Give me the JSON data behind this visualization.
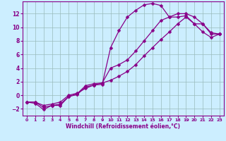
{
  "title": "",
  "xlabel": "Windchill (Refroidissement éolien,°C)",
  "ylabel": "",
  "bg_color": "#cceeff",
  "line_color": "#880088",
  "grid_color": "#99bbbb",
  "xlim": [
    -0.5,
    23.5
  ],
  "ylim": [
    -3.0,
    13.8
  ],
  "xticks": [
    0,
    1,
    2,
    3,
    4,
    5,
    6,
    7,
    8,
    9,
    10,
    11,
    12,
    13,
    14,
    15,
    16,
    17,
    18,
    19,
    20,
    21,
    22,
    23
  ],
  "yticks": [
    -2,
    0,
    2,
    4,
    6,
    8,
    10,
    12
  ],
  "line1_x": [
    0,
    1,
    2,
    3,
    4,
    5,
    6,
    7,
    8,
    9,
    10,
    11,
    12,
    13,
    14,
    15,
    16,
    17,
    18,
    19,
    20,
    21,
    22,
    23
  ],
  "line1_y": [
    -1.0,
    -1.2,
    -2.1,
    -1.5,
    -1.5,
    -0.2,
    0.1,
    1.2,
    1.5,
    1.6,
    7.0,
    9.5,
    11.5,
    12.5,
    13.3,
    13.5,
    13.2,
    11.5,
    11.5,
    11.7,
    10.5,
    10.5,
    9.0,
    9.0
  ],
  "line2_x": [
    0,
    1,
    2,
    3,
    4,
    5,
    6,
    7,
    8,
    9,
    10,
    11,
    12,
    13,
    14,
    15,
    16,
    17,
    18,
    19,
    20,
    21,
    22,
    23
  ],
  "line2_y": [
    -1.0,
    -1.0,
    -1.8,
    -1.5,
    -1.3,
    -0.2,
    0.2,
    1.4,
    1.7,
    1.8,
    4.0,
    4.5,
    5.2,
    6.5,
    8.0,
    9.5,
    11.0,
    11.5,
    12.0,
    12.0,
    11.5,
    10.5,
    9.2,
    9.0
  ],
  "line3_x": [
    0,
    1,
    2,
    3,
    4,
    5,
    6,
    7,
    8,
    9,
    10,
    11,
    12,
    13,
    14,
    15,
    16,
    17,
    18,
    19,
    20,
    21,
    22,
    23
  ],
  "line3_y": [
    -1.0,
    -1.0,
    -1.5,
    -1.3,
    -1.0,
    0.0,
    0.3,
    1.0,
    1.5,
    1.8,
    2.2,
    2.8,
    3.5,
    4.5,
    5.8,
    7.0,
    8.2,
    9.3,
    10.5,
    11.5,
    10.5,
    9.3,
    8.5,
    9.0
  ]
}
